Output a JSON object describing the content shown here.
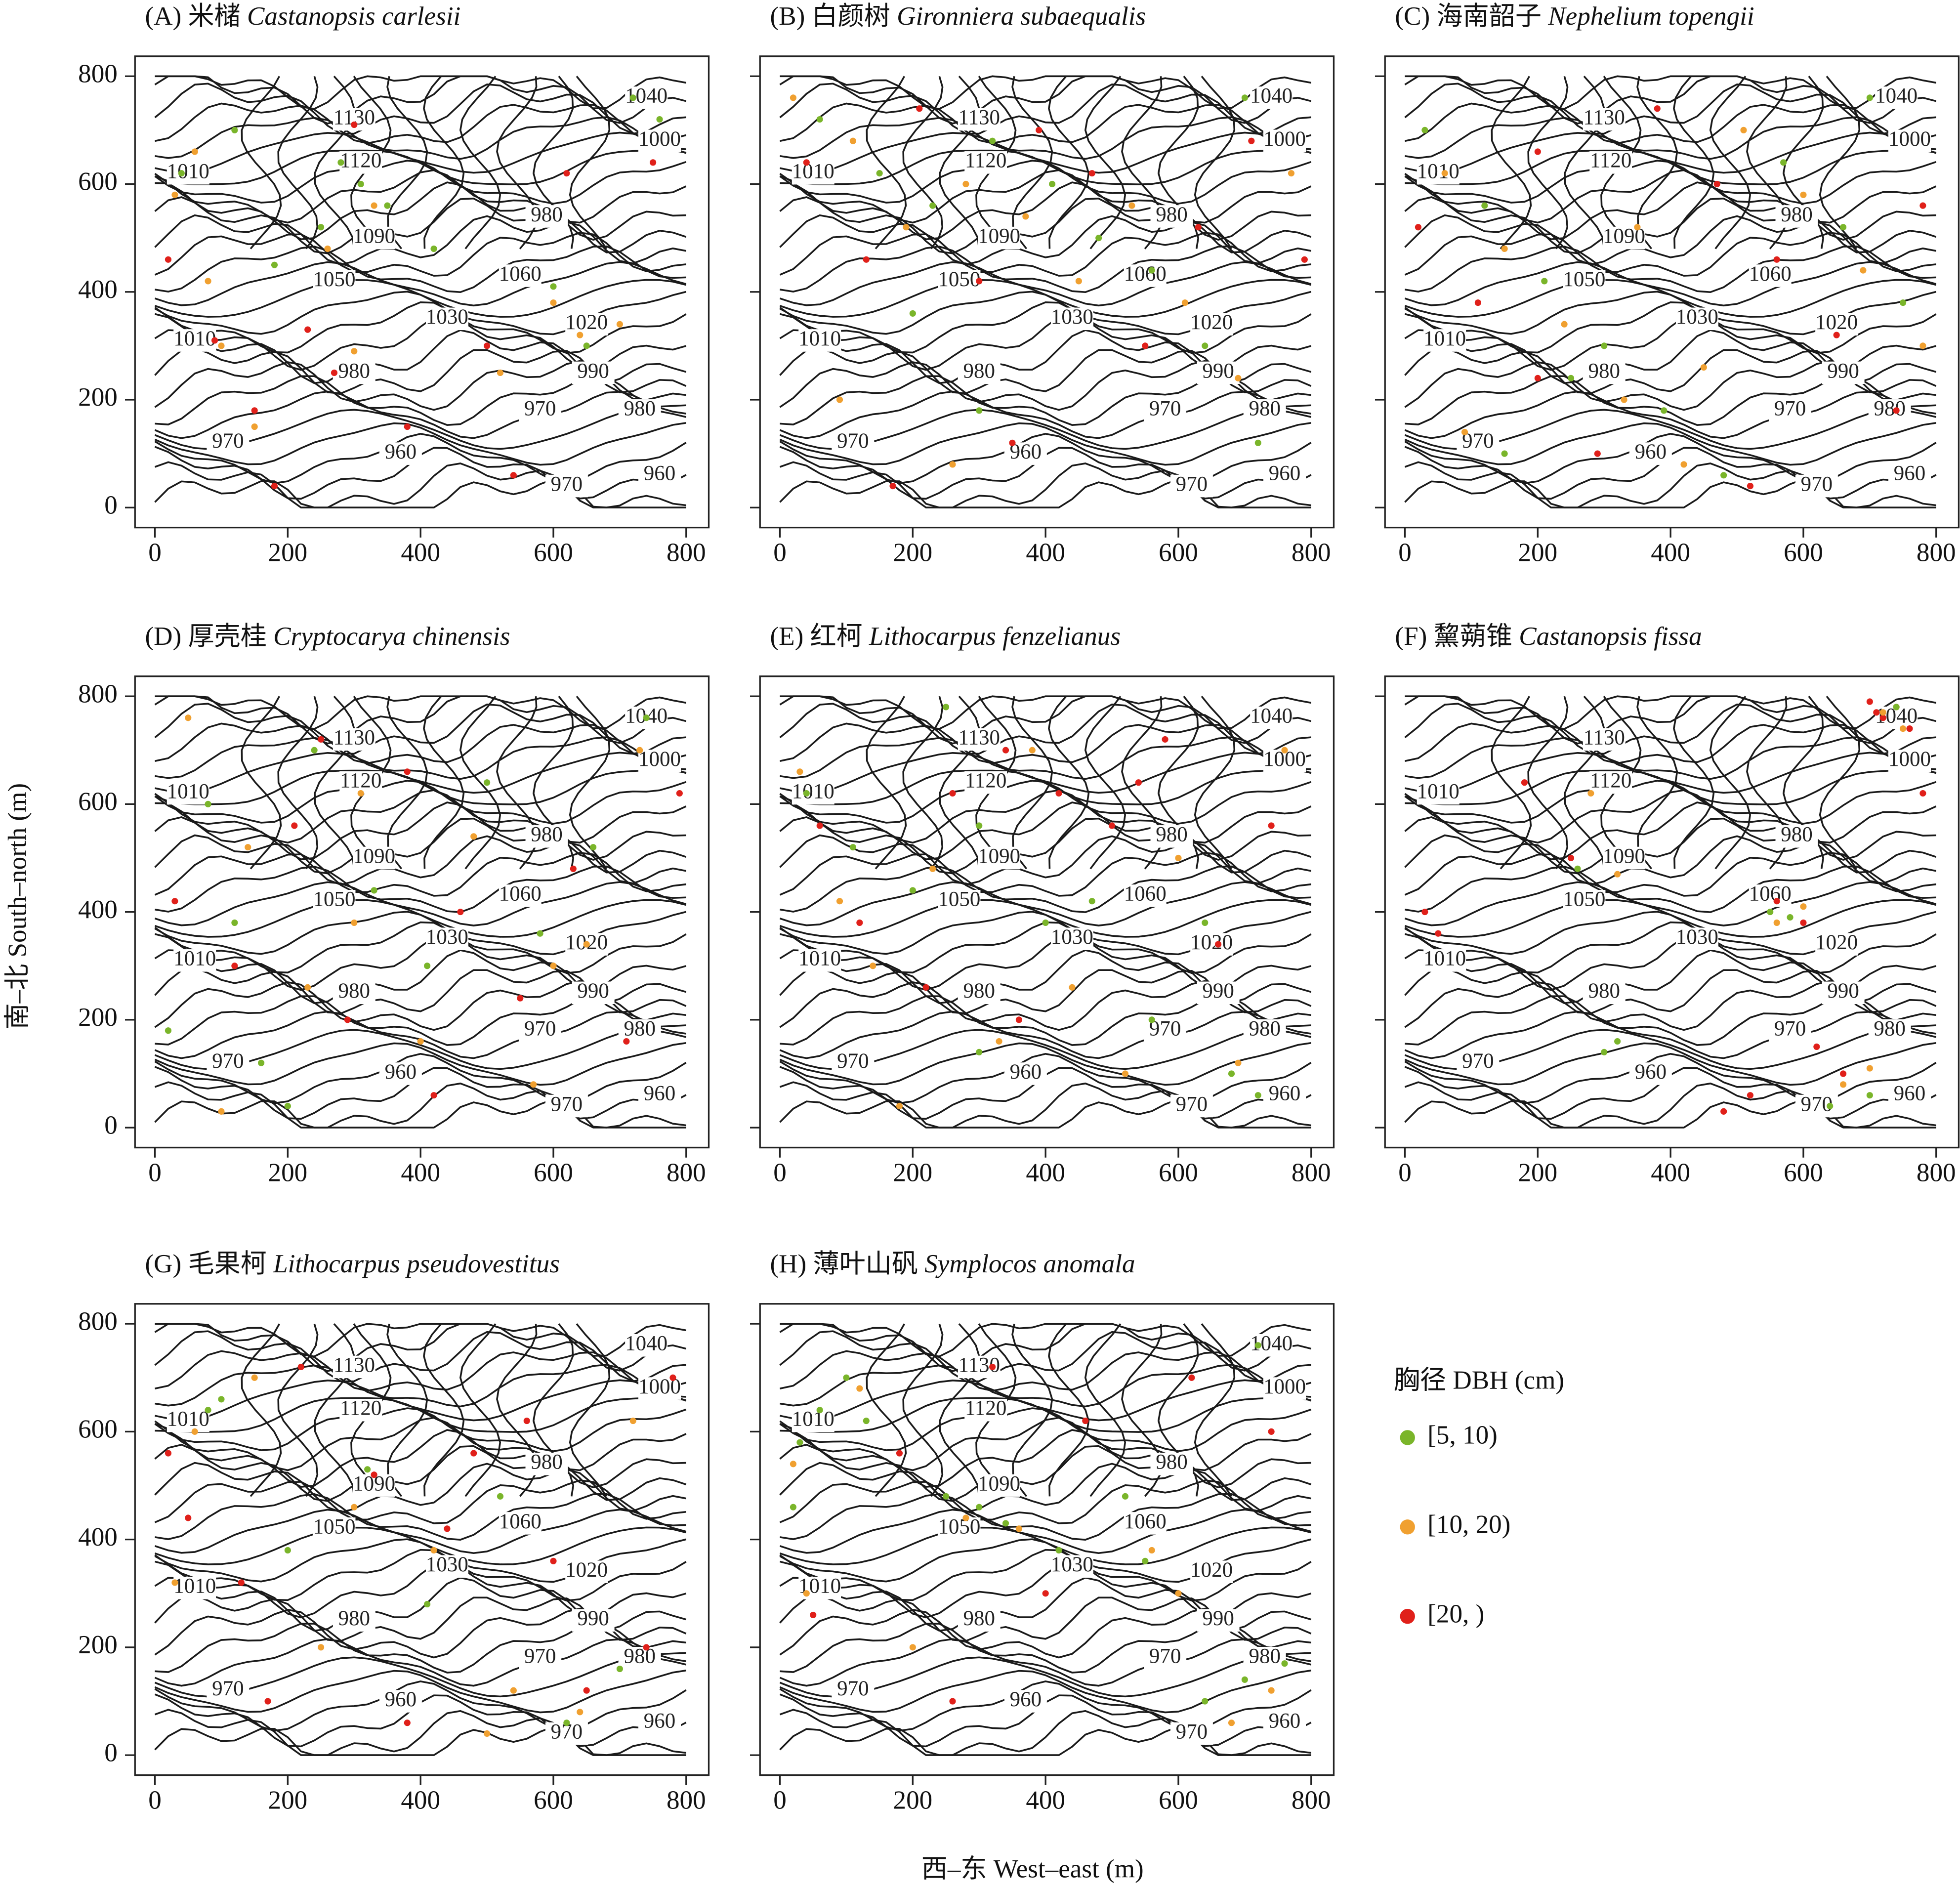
{
  "xlabel": "西–东 West–east (m)",
  "ylabel": "南–北 South–north (m)",
  "axes": {
    "xlim": [
      -30,
      834
    ],
    "ylim": [
      -37,
      837
    ],
    "xticks": [
      0,
      200,
      400,
      600,
      800
    ],
    "yticks": [
      0,
      200,
      400,
      600,
      800
    ]
  },
  "legend": {
    "title": "胸径 DBH (cm)",
    "items": [
      {
        "name": "[5, 10)",
        "color": "#7ab52a"
      },
      {
        "name": "[10, 20)",
        "color": "#f0a030"
      },
      {
        "name": "[20, )",
        "color": "#e0201a"
      }
    ]
  },
  "contour_labels": [
    "1040",
    "1000",
    "1130",
    "1120",
    "1010",
    "980",
    "1090",
    "1050",
    "1060",
    "1030",
    "1020",
    "1010",
    "980",
    "990",
    "970",
    "980",
    "970",
    "960",
    "970",
    "960"
  ],
  "chart_data": [
    {
      "type": "scatter",
      "title": "(A) 米槠",
      "species": "Castanopsis carlesii",
      "series": [
        {
          "x": [
            40,
            120,
            280,
            310,
            350,
            420,
            600,
            650,
            720,
            760,
            180,
            250
          ],
          "y": [
            620,
            700,
            640,
            600,
            560,
            480,
            410,
            300,
            760,
            720,
            450,
            520
          ]
        },
        {
          "x": [
            30,
            60,
            100,
            260,
            300,
            330,
            520,
            600,
            640,
            700,
            150,
            80
          ],
          "y": [
            580,
            660,
            300,
            480,
            290,
            560,
            250,
            380,
            320,
            340,
            150,
            420
          ]
        },
        {
          "x": [
            20,
            90,
            150,
            230,
            270,
            380,
            500,
            540,
            620,
            750,
            180,
            300
          ],
          "y": [
            460,
            310,
            180,
            330,
            250,
            150,
            300,
            60,
            620,
            640,
            40,
            710
          ]
        }
      ]
    },
    {
      "type": "scatter",
      "title": "(B) 白颜树",
      "species": "Gironniera subaequalis",
      "series": [
        {
          "x": [
            60,
            150,
            230,
            320,
            410,
            480,
            560,
            640,
            720,
            300,
            200,
            700
          ],
          "y": [
            720,
            620,
            560,
            680,
            600,
            500,
            440,
            300,
            120,
            180,
            360,
            760
          ]
        },
        {
          "x": [
            20,
            110,
            190,
            280,
            370,
            450,
            530,
            610,
            690,
            770,
            260,
            90
          ],
          "y": [
            760,
            680,
            520,
            600,
            540,
            420,
            560,
            380,
            240,
            620,
            80,
            200
          ]
        },
        {
          "x": [
            40,
            130,
            210,
            300,
            390,
            470,
            550,
            630,
            710,
            790,
            350,
            170
          ],
          "y": [
            640,
            460,
            740,
            420,
            700,
            620,
            300,
            520,
            680,
            460,
            120,
            40
          ]
        }
      ]
    },
    {
      "type": "scatter",
      "title": "(C) 海南韶子",
      "species": "Nephelium topengii",
      "series": [
        {
          "x": [
            30,
            120,
            210,
            300,
            390,
            480,
            570,
            660,
            750,
            250,
            150,
            700
          ],
          "y": [
            700,
            560,
            420,
            300,
            180,
            60,
            640,
            520,
            380,
            240,
            100,
            760
          ]
        },
        {
          "x": [
            60,
            150,
            240,
            330,
            420,
            510,
            600,
            690,
            780,
            350,
            450,
            90
          ],
          "y": [
            620,
            480,
            340,
            200,
            80,
            700,
            580,
            440,
            300,
            520,
            260,
            140
          ]
        },
        {
          "x": [
            20,
            110,
            200,
            290,
            380,
            470,
            560,
            650,
            740,
            200,
            520,
            780
          ],
          "y": [
            520,
            380,
            240,
            100,
            740,
            600,
            460,
            320,
            180,
            660,
            40,
            560
          ]
        }
      ]
    },
    {
      "type": "scatter",
      "title": "(D) 厚壳桂",
      "species": "Cryptocarya chinensis",
      "series": [
        {
          "x": [
            20,
            80,
            160,
            240,
            330,
            410,
            500,
            580,
            660,
            740,
            200,
            120
          ],
          "y": [
            180,
            600,
            120,
            700,
            440,
            300,
            640,
            360,
            520,
            760,
            40,
            380
          ]
        },
        {
          "x": [
            50,
            140,
            230,
            310,
            400,
            480,
            570,
            650,
            730,
            300,
            600,
            100
          ],
          "y": [
            760,
            520,
            260,
            620,
            160,
            540,
            80,
            340,
            700,
            380,
            300,
            30
          ]
        },
        {
          "x": [
            30,
            120,
            210,
            290,
            380,
            460,
            550,
            630,
            710,
            790,
            250,
            420
          ],
          "y": [
            420,
            300,
            560,
            200,
            660,
            400,
            240,
            480,
            160,
            620,
            720,
            60
          ]
        }
      ]
    },
    {
      "type": "scatter",
      "title": "(E) 红柯",
      "species": "Lithocarpus fenzelianus",
      "series": [
        {
          "x": [
            40,
            110,
            200,
            300,
            400,
            470,
            560,
            640,
            720,
            300,
            250,
            680
          ],
          "y": [
            620,
            520,
            440,
            560,
            380,
            420,
            200,
            380,
            60,
            140,
            780,
            100
          ]
        },
        {
          "x": [
            30,
            140,
            230,
            330,
            440,
            520,
            600,
            690,
            760,
            180,
            380,
            90
          ],
          "y": [
            660,
            300,
            480,
            160,
            260,
            100,
            500,
            120,
            700,
            40,
            700,
            420
          ]
        },
        {
          "x": [
            60,
            120,
            260,
            340,
            420,
            500,
            580,
            660,
            740,
            220,
            360,
            540
          ],
          "y": [
            560,
            380,
            620,
            700,
            620,
            560,
            720,
            340,
            560,
            260,
            200,
            640
          ]
        }
      ]
    },
    {
      "type": "scatter",
      "title": "(F) 黧蒴锥",
      "species": "Castanopsis fissa",
      "series": [
        {
          "x": [
            300,
            320,
            550,
            580,
            260,
            700,
            640,
            740
          ],
          "y": [
            140,
            160,
            400,
            390,
            480,
            60,
            40,
            780
          ]
        },
        {
          "x": [
            560,
            600,
            720,
            750,
            660,
            280,
            320,
            700
          ],
          "y": [
            380,
            410,
            770,
            740,
            80,
            620,
            470,
            110
          ]
        },
        {
          "x": [
            700,
            720,
            740,
            760,
            780,
            710,
            560,
            600,
            520,
            480,
            660,
            30,
            50,
            250,
            180,
            620
          ],
          "y": [
            790,
            760,
            780,
            740,
            620,
            770,
            420,
            380,
            60,
            30,
            100,
            400,
            360,
            500,
            640,
            150
          ]
        }
      ]
    },
    {
      "type": "scatter",
      "title": "(G) 毛果柯",
      "species": "Lithocarpus pseudovestitus",
      "series": [
        {
          "x": [
            80,
            100,
            320,
            520,
            700,
            620,
            410,
            200
          ],
          "y": [
            640,
            660,
            530,
            480,
            160,
            60,
            280,
            380
          ]
        },
        {
          "x": [
            60,
            150,
            300,
            420,
            540,
            640,
            720,
            250,
            500,
            30
          ],
          "y": [
            600,
            700,
            460,
            380,
            120,
            80,
            620,
            200,
            40,
            320
          ]
        },
        {
          "x": [
            20,
            50,
            130,
            220,
            330,
            440,
            560,
            650,
            740,
            780,
            170,
            380,
            600,
            480
          ],
          "y": [
            560,
            440,
            320,
            720,
            520,
            420,
            620,
            120,
            200,
            700,
            100,
            60,
            360,
            560
          ]
        }
      ]
    },
    {
      "type": "scatter",
      "title": "(H) 薄叶山矾",
      "species": "Symplocos anomala",
      "series": [
        {
          "x": [
            30,
            60,
            100,
            130,
            250,
            300,
            340,
            420,
            550,
            640,
            700,
            760,
            20,
            720,
            520
          ],
          "y": [
            580,
            640,
            700,
            620,
            480,
            460,
            430,
            380,
            360,
            100,
            140,
            170,
            460,
            760,
            480
          ]
        },
        {
          "x": [
            40,
            120,
            280,
            360,
            560,
            680,
            740,
            200,
            600,
            20
          ],
          "y": [
            300,
            680,
            440,
            420,
            380,
            60,
            120,
            200,
            300,
            540
          ]
        },
        {
          "x": [
            50,
            180,
            320,
            460,
            620,
            740,
            260,
            400
          ],
          "y": [
            260,
            560,
            720,
            620,
            700,
            600,
            100,
            300
          ]
        }
      ]
    }
  ]
}
